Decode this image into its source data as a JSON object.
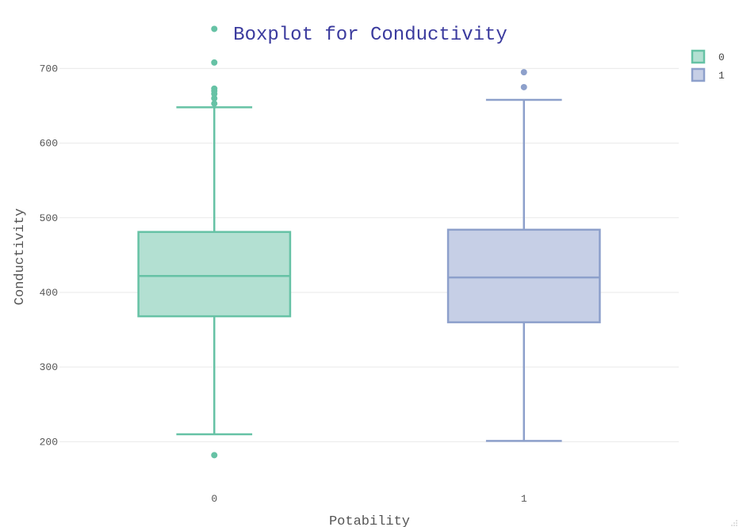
{
  "chart_data": {
    "type": "box",
    "title": "Boxplot for Conductivity",
    "xlabel": "Potability",
    "ylabel": "Conductivity",
    "ylim": [
      142,
      762
    ],
    "yticks": [
      200,
      300,
      400,
      500,
      600,
      700
    ],
    "grid": true,
    "legend_position": "top-right",
    "series": [
      {
        "name": "0",
        "category": "0",
        "color": "#66c2a5",
        "fill": "#b3e0d2",
        "lower_whisker": 210,
        "q1": 368,
        "median": 422,
        "q3": 481,
        "upper_whisker": 648,
        "outliers": [
          753,
          708,
          673,
          670,
          666,
          660,
          653,
          182
        ]
      },
      {
        "name": "1",
        "category": "1",
        "color": "#8da0cb",
        "fill": "#c6cfe6",
        "lower_whisker": 201,
        "q1": 360,
        "median": 420,
        "q3": 484,
        "upper_whisker": 658,
        "outliers": [
          695,
          675
        ]
      }
    ]
  }
}
